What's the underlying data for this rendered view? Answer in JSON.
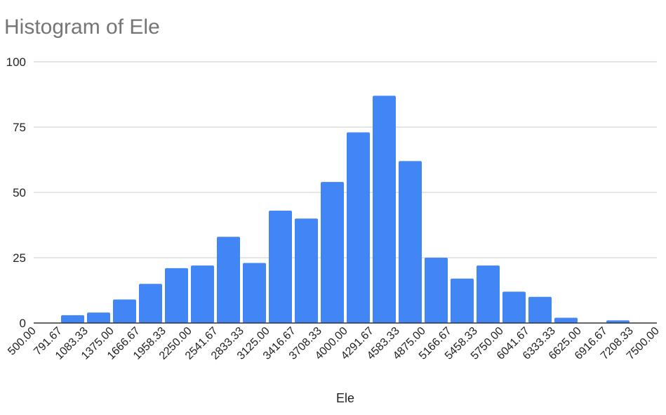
{
  "chart_data": {
    "type": "bar",
    "title": "Histogram of Ele",
    "xlabel": "Ele",
    "ylabel": "",
    "ylim": [
      0,
      100
    ],
    "yticks": [
      0,
      25,
      50,
      75,
      100
    ],
    "bin_edges": [
      "500.00",
      "791.67",
      "1083.33",
      "1375.00",
      "1666.67",
      "1958.33",
      "2250.00",
      "2541.67",
      "2833.33",
      "3125.00",
      "3416.67",
      "3708.33",
      "4000.00",
      "4291.67",
      "4583.33",
      "4875.00",
      "5166.67",
      "5458.33",
      "5750.00",
      "6041.67",
      "6333.33",
      "6625.00",
      "6916.67",
      "7208.33",
      "7500.00"
    ],
    "values": [
      0,
      3,
      4,
      9,
      15,
      21,
      22,
      33,
      23,
      43,
      40,
      54,
      73,
      87,
      62,
      25,
      17,
      22,
      12,
      10,
      2,
      0,
      1,
      0
    ],
    "grid": true,
    "bar_color": "#4285f4"
  }
}
